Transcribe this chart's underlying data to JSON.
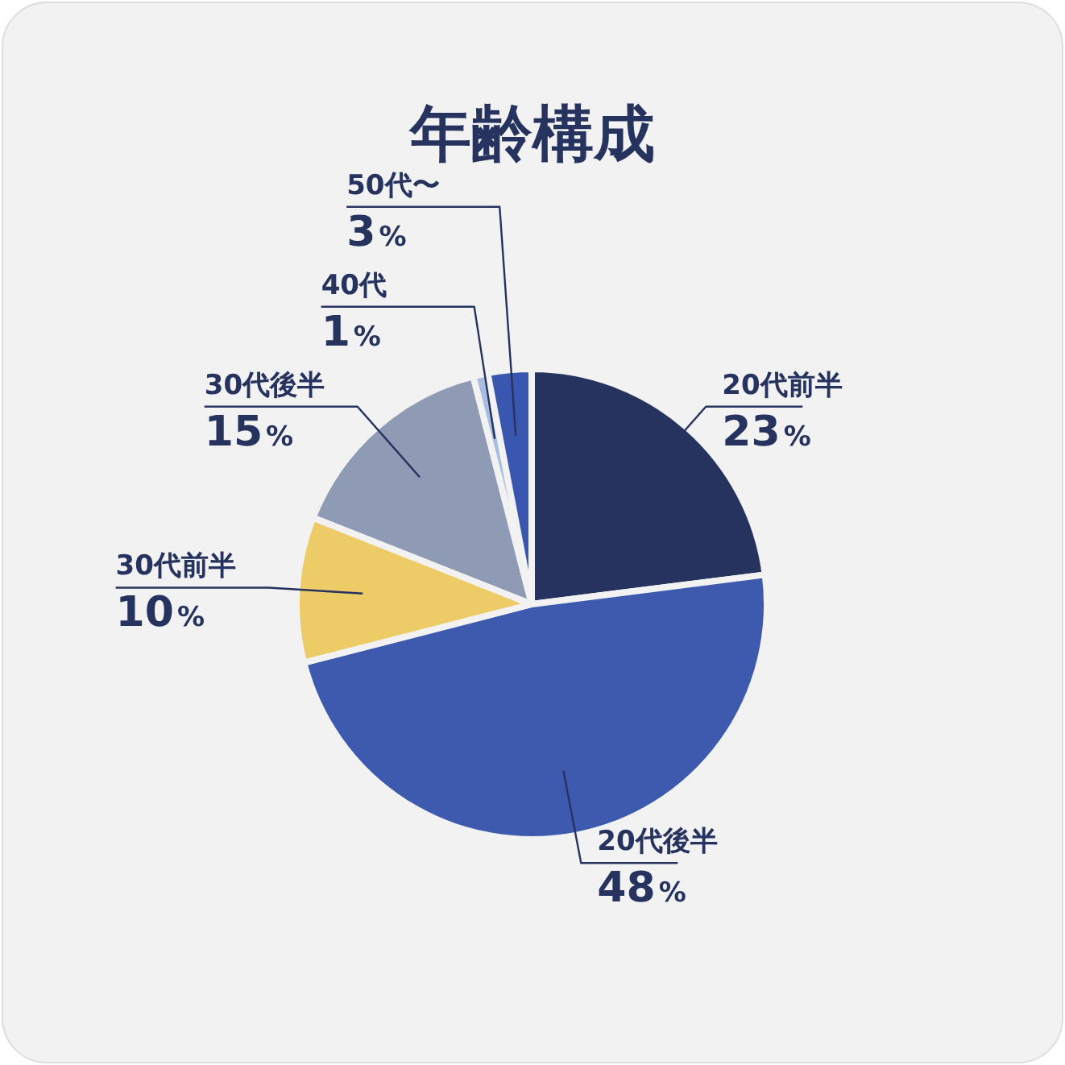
{
  "chart_data": {
    "type": "pie",
    "title": "年齢構成",
    "categories": [
      "20代前半",
      "20代後半",
      "30代前半",
      "30代後半",
      "40代",
      "50代〜"
    ],
    "values": [
      23,
      48,
      10,
      15,
      1,
      3
    ],
    "value_labels": [
      "23%",
      "48%",
      "10%",
      "15%",
      "1%",
      "3%"
    ],
    "colors": [
      "#26335f",
      "#3d5aae",
      "#edcb67",
      "#8f9ab4",
      "#a9bde0",
      "#3a57b0"
    ],
    "legend": false
  }
}
